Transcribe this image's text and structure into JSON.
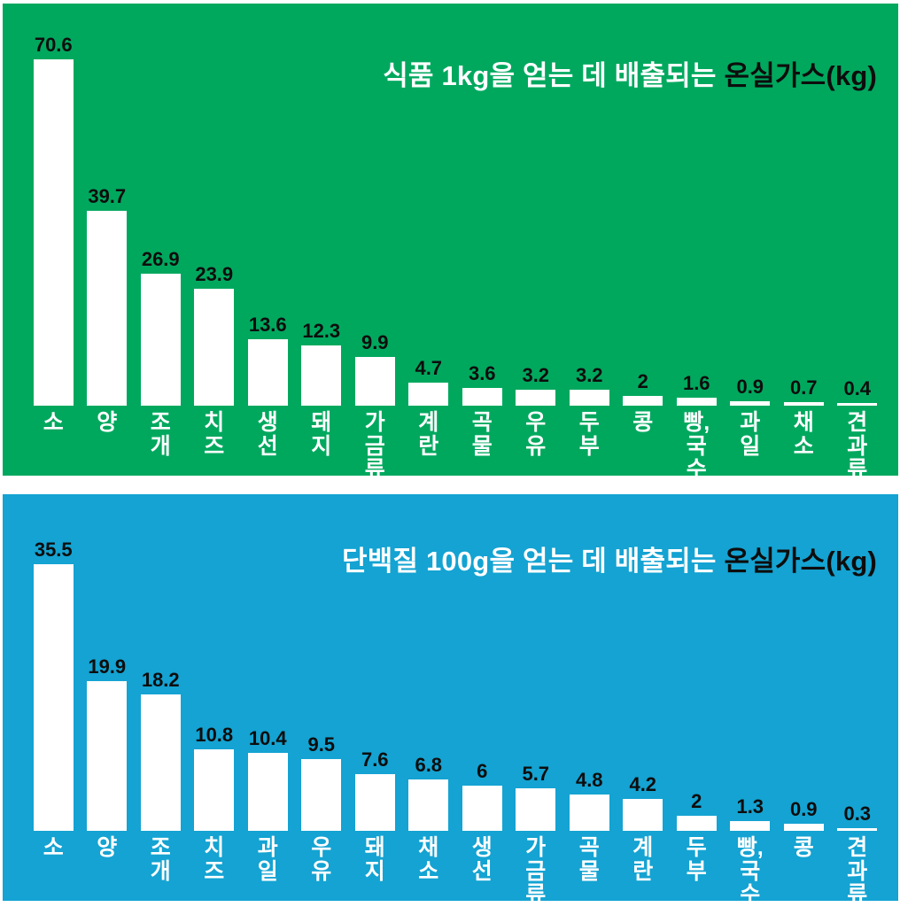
{
  "page": {
    "frame_background": "#ffffff",
    "divider_color": "#ffffff"
  },
  "chart_data": [
    {
      "type": "bar",
      "title": "식품 1kg을 얻는 데 배출되는 온실가스(kg)",
      "title_parts": {
        "prefix": "식품 1kg을 얻는 데 배출되는",
        "suffix": "온실가스(kg)"
      },
      "categories": [
        "소",
        "양",
        "조개",
        "치즈",
        "생선",
        "돼지",
        "가금류",
        "계란",
        "곡물",
        "우유",
        "두부",
        "콩",
        "빵,국수",
        "과일",
        "채소",
        "견과류"
      ],
      "values": [
        70.6,
        39.7,
        26.9,
        23.9,
        13.6,
        12.3,
        9.9,
        4.7,
        3.6,
        3.2,
        3.2,
        2,
        1.6,
        0.9,
        0.7,
        0.4
      ],
      "xlabel": "",
      "ylabel": "",
      "ylim": [
        0,
        72
      ],
      "grid": false,
      "legend_position": "none",
      "data_labels": "above-bars",
      "category_label_orientation": "vertical-stacked",
      "background_color": "#00a85e",
      "bar_color": "#ffffff",
      "value_label_color": "#0d0d0d",
      "category_label_color": "#ffffff",
      "title_prefix_color": "#ffffff",
      "title_suffix_color": "#0d0d0d"
    },
    {
      "type": "bar",
      "title": "단백질 100g을 얻는 데 배출되는 온실가스(kg)",
      "title_parts": {
        "prefix": "단백질 100g을 얻는 데 배출되는",
        "suffix": "온실가스(kg)"
      },
      "categories": [
        "소",
        "양",
        "조개",
        "치즈",
        "과일",
        "우유",
        "돼지",
        "채소",
        "생선",
        "가금류",
        "곡물",
        "계란",
        "두부",
        "빵,국수",
        "콩",
        "견과류"
      ],
      "values": [
        35.5,
        19.9,
        18.2,
        10.8,
        10.4,
        9.5,
        7.6,
        6.8,
        6,
        5.7,
        4.8,
        4.2,
        2,
        1.3,
        0.9,
        0.3
      ],
      "xlabel": "",
      "ylabel": "",
      "ylim": [
        0,
        36
      ],
      "grid": false,
      "legend_position": "none",
      "data_labels": "above-bars",
      "category_label_orientation": "vertical-stacked",
      "background_color": "#14a3d2",
      "bar_color": "#ffffff",
      "value_label_color": "#0d0d0d",
      "category_label_color": "#ffffff",
      "title_prefix_color": "#ffffff",
      "title_suffix_color": "#0d0d0d"
    }
  ]
}
